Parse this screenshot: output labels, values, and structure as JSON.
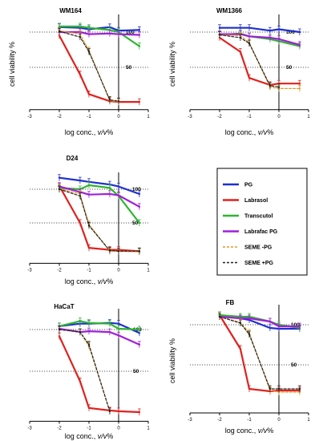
{
  "figure": {
    "legend": [
      {
        "name": "PG",
        "color": "#1f2fd0",
        "dash": false
      },
      {
        "name": "Labrasol",
        "color": "#e0221e",
        "dash": false
      },
      {
        "name": "Transcutol",
        "color": "#2fb52f",
        "dash": false
      },
      {
        "name": "Labrafac PG",
        "color": "#a020d8",
        "dash": false
      },
      {
        "name": "SEME -PG",
        "color": "#e09a2a",
        "dash": true
      },
      {
        "name": "SEME +PG",
        "color": "#222222",
        "dash": true
      }
    ]
  },
  "chart_data": [
    {
      "type": "line",
      "title": "WM164",
      "xlabel": "log conc., v/v%",
      "ylabel": "cell viability %",
      "xlim": [
        -3,
        1
      ],
      "xticks": [
        -3,
        -2,
        -1,
        0,
        1
      ],
      "ylim": [
        -10,
        125
      ],
      "ref_lines": [
        {
          "value": 100,
          "label": "100"
        },
        {
          "value": 50,
          "label": "50"
        }
      ],
      "x": [
        -2,
        -1.3,
        -1,
        -0.3,
        0,
        0.7
      ],
      "series": [
        {
          "name": "PG",
          "values": [
            107,
            106,
            104,
            107,
            102,
            103
          ]
        },
        {
          "name": "Labrasol",
          "values": [
            95,
            40,
            12,
            2,
            1,
            1
          ]
        },
        {
          "name": "Transcutol",
          "values": [
            108,
            108,
            106,
            103,
            100,
            80
          ]
        },
        {
          "name": "Labrafac PG",
          "values": [
            100,
            100,
            97,
            98,
            97,
            96
          ]
        },
        {
          "name": "SEME -PG",
          "values": [
            102,
            97,
            74,
            3,
            1,
            null
          ]
        },
        {
          "name": "SEME +PG",
          "values": [
            101,
            93,
            72,
            4,
            2,
            null
          ]
        }
      ]
    },
    {
      "type": "line",
      "title": "WM1366",
      "xlabel": "log conc., v/v%",
      "ylabel": "cell viability %",
      "xlim": [
        -3,
        1
      ],
      "xticks": [
        -3,
        -2,
        -1,
        0,
        1
      ],
      "ylim": [
        -10,
        125
      ],
      "ref_lines": [
        {
          "value": 100,
          "label": "100"
        },
        {
          "value": 50,
          "label": "50"
        }
      ],
      "x": [
        -2,
        -1.3,
        -1,
        -0.3,
        0,
        0.7
      ],
      "series": [
        {
          "name": "PG",
          "values": [
            106,
            106,
            106,
            102,
            104,
            100
          ]
        },
        {
          "name": "Labrasol",
          "values": [
            92,
            72,
            35,
            25,
            27,
            27
          ]
        },
        {
          "name": "Transcutol",
          "values": [
            96,
            98,
            94,
            90,
            87,
            80
          ]
        },
        {
          "name": "Labrafac PG",
          "values": [
            97,
            97,
            94,
            92,
            90,
            82
          ]
        },
        {
          "name": "SEME -PG",
          "values": [
            96,
            95,
            85,
            22,
            20,
            20
          ]
        },
        {
          "name": "SEME +PG",
          "values": [
            96,
            92,
            84,
            24,
            22,
            null
          ]
        }
      ]
    },
    {
      "type": "line",
      "title": "D24",
      "xlabel": "log conc., v/v%",
      "ylabel": "",
      "xlim": [
        -3,
        1
      ],
      "xticks": [
        -3,
        -2,
        -1,
        0,
        1
      ],
      "ylim": [
        -10,
        125
      ],
      "ref_lines": [
        {
          "value": 100,
          "label": "100"
        },
        {
          "value": 50,
          "label": "50"
        }
      ],
      "x": [
        -2,
        -1.3,
        -1,
        -0.3,
        0,
        0.7
      ],
      "series": [
        {
          "name": "PG",
          "values": [
            117,
            113,
            111,
            107,
            104,
            93
          ]
        },
        {
          "name": "Labrasol",
          "values": [
            105,
            50,
            13,
            10,
            10,
            8
          ]
        },
        {
          "name": "Transcutol",
          "values": [
            102,
            100,
            106,
            102,
            90,
            50
          ]
        },
        {
          "name": "Labrafac PG",
          "values": [
            104,
            96,
            92,
            93,
            91,
            74
          ]
        },
        {
          "name": "SEME -PG",
          "values": [
            101,
            93,
            48,
            8,
            8,
            7
          ]
        },
        {
          "name": "SEME +PG",
          "values": [
            100,
            90,
            46,
            9,
            8,
            8
          ]
        }
      ]
    },
    {
      "type": "line",
      "title": "HaCaT",
      "xlabel": "log conc., v/v%",
      "ylabel": "",
      "xlim": [
        -3,
        1
      ],
      "xticks": [
        -3,
        -2,
        -1,
        0,
        1
      ],
      "ylim": [
        -10,
        125
      ],
      "ref_lines": [
        {
          "value": 100,
          "label": "100"
        },
        {
          "value": 50,
          "label": "50"
        }
      ],
      "x": [
        -2,
        -1.3,
        -1,
        -0.3,
        0,
        0.7
      ],
      "series": [
        {
          "name": "PG",
          "values": [
            104,
            107,
            107,
            108,
            107,
            96
          ]
        },
        {
          "name": "Labrasol",
          "values": [
            92,
            38,
            6,
            3,
            2,
            1
          ]
        },
        {
          "name": "Transcutol",
          "values": [
            104,
            110,
            108,
            107,
            101,
            100
          ]
        },
        {
          "name": "Labrafac PG",
          "values": [
            101,
            97,
            98,
            97,
            93,
            82
          ]
        },
        {
          "name": "SEME -PG",
          "values": [
            100,
            97,
            80,
            2,
            null,
            null
          ]
        },
        {
          "name": "SEME +PG",
          "values": [
            100,
            97,
            82,
            2,
            null,
            null
          ]
        }
      ]
    },
    {
      "type": "line",
      "title": "FB",
      "xlabel": "log conc., v/v%",
      "ylabel": "cell viability %",
      "xlim": [
        -3,
        1
      ],
      "xticks": [
        -3,
        -2,
        -1,
        0,
        1
      ],
      "ylim": [
        -10,
        125
      ],
      "ref_lines": [
        {
          "value": 100,
          "label": "100"
        },
        {
          "value": 50,
          "label": "50"
        }
      ],
      "x": [
        -2,
        -1.3,
        -1,
        -0.3,
        0,
        0.7
      ],
      "series": [
        {
          "name": "PG",
          "values": [
            112,
            108,
            106,
            96,
            95,
            95
          ]
        },
        {
          "name": "Labrasol",
          "values": [
            112,
            70,
            20,
            17,
            18,
            18
          ]
        },
        {
          "name": "Transcutol",
          "values": [
            112,
            110,
            110,
            104,
            100,
            96
          ]
        },
        {
          "name": "Labrafac PG",
          "values": [
            110,
            108,
            108,
            104,
            98,
            98
          ]
        },
        {
          "name": "SEME -PG",
          "values": [
            110,
            103,
            90,
            18,
            16,
            16
          ]
        },
        {
          "name": "SEME +PG",
          "values": [
            110,
            102,
            88,
            20,
            20,
            20
          ]
        }
      ]
    }
  ]
}
